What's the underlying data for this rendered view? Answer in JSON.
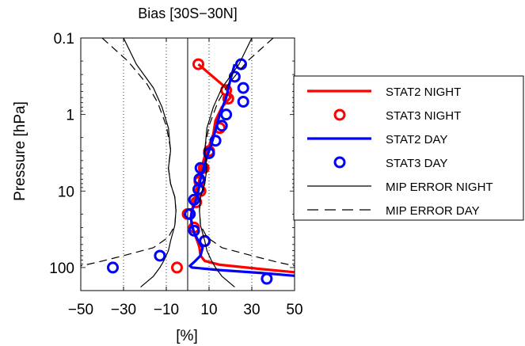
{
  "chart_data": {
    "type": "line",
    "title": "Bias [30S−30N]",
    "xlabel": "[%]",
    "ylabel": "Pressure [hPa]",
    "xlim": [
      -50,
      50
    ],
    "ylim": [
      0.1,
      200
    ],
    "y_scale": "log",
    "y_reversed": true,
    "grid": "vertical dotted lines at x = -30, -10, 10, 30",
    "zero_line": true,
    "legend_position": "right",
    "x_ticks": [
      -50,
      -30,
      -10,
      10,
      30,
      50
    ],
    "x_tick_labels": [
      "−50",
      "−30",
      "−10",
      "10",
      "30",
      "50"
    ],
    "y_ticks": [
      0.1,
      1,
      10,
      100
    ],
    "y_tick_labels": [
      "0.1",
      "1",
      "10",
      "100"
    ],
    "colors": {
      "night": "#ff0000",
      "day": "#0000ff",
      "error": "#000000"
    },
    "series": [
      {
        "name": "STAT2 NIGHT",
        "style": "line",
        "color": "#ff0000",
        "points": [
          [
            5,
            0.22
          ],
          [
            18,
            0.45
          ],
          [
            20,
            0.6
          ],
          [
            16,
            0.8
          ],
          [
            13,
            1.2
          ],
          [
            12,
            1.8
          ],
          [
            10,
            2.6
          ],
          [
            8,
            3.5
          ],
          [
            6.5,
            5
          ],
          [
            5.5,
            7
          ],
          [
            4.5,
            10
          ],
          [
            3,
            14
          ],
          [
            2,
            18
          ],
          [
            1.5,
            22
          ],
          [
            2,
            28
          ],
          [
            3,
            35
          ],
          [
            4.5,
            45
          ],
          [
            5.5,
            55
          ],
          [
            6,
            70
          ],
          [
            8,
            82
          ],
          [
            15,
            92
          ],
          [
            35,
            105
          ],
          [
            50,
            115
          ]
        ]
      },
      {
        "name": "STAT3 NIGHT",
        "style": "markers",
        "color": "#ff0000",
        "points": [
          [
            5,
            0.22
          ],
          [
            18,
            0.48
          ],
          [
            19,
            0.62
          ],
          [
            15,
            1.5
          ],
          [
            10,
            3
          ],
          [
            7.5,
            5
          ],
          [
            5.5,
            7.5
          ],
          [
            6,
            10
          ],
          [
            4,
            14
          ],
          [
            0,
            20
          ],
          [
            3,
            30
          ],
          [
            8,
            45
          ],
          [
            -5,
            100
          ]
        ]
      },
      {
        "name": "STAT2 DAY",
        "style": "line",
        "color": "#0000ff",
        "points": [
          [
            22,
            0.22
          ],
          [
            20,
            0.35
          ],
          [
            18,
            0.6
          ],
          [
            15,
            1.0
          ],
          [
            13,
            1.6
          ],
          [
            11,
            2.5
          ],
          [
            9,
            3.6
          ],
          [
            7.5,
            5
          ],
          [
            6,
            7
          ],
          [
            5,
            10
          ],
          [
            4,
            13
          ],
          [
            2,
            18
          ],
          [
            1.5,
            22
          ],
          [
            2,
            28
          ],
          [
            3,
            35
          ],
          [
            5,
            45
          ],
          [
            7,
            55
          ],
          [
            6,
            70
          ],
          [
            3,
            85
          ],
          [
            1,
            95
          ],
          [
            2,
            100
          ],
          [
            15,
            108
          ],
          [
            35,
            118
          ],
          [
            50,
            128
          ]
        ]
      },
      {
        "name": "STAT3 DAY",
        "style": "markers",
        "color": "#0000ff",
        "points": [
          [
            25,
            0.22
          ],
          [
            22,
            0.32
          ],
          [
            26,
            0.45
          ],
          [
            26,
            0.68
          ],
          [
            18,
            1.0
          ],
          [
            16,
            1.4
          ],
          [
            13,
            2.2
          ],
          [
            10,
            3.2
          ],
          [
            6,
            5
          ],
          [
            5.5,
            7
          ],
          [
            5,
            9.5
          ],
          [
            3,
            13
          ],
          [
            1,
            20
          ],
          [
            3,
            33
          ],
          [
            8,
            45
          ],
          [
            -13,
            70
          ],
          [
            -35,
            100
          ],
          [
            37,
            140
          ]
        ]
      },
      {
        "name": "MIP ERROR NIGHT",
        "style": "line",
        "dash": "solid",
        "color": "#000000",
        "mirrored": true,
        "points": [
          [
            30,
            0.1
          ],
          [
            24,
            0.22
          ],
          [
            16,
            0.45
          ],
          [
            12,
            0.8
          ],
          [
            9,
            1.5
          ],
          [
            8,
            3
          ],
          [
            9,
            5
          ],
          [
            8,
            8
          ],
          [
            6,
            12
          ],
          [
            5.5,
            18
          ],
          [
            6,
            28
          ],
          [
            8,
            45
          ],
          [
            9,
            60
          ],
          [
            11,
            80
          ],
          [
            13,
            100
          ],
          [
            16,
            130
          ],
          [
            22,
            180
          ]
        ]
      },
      {
        "name": "MIP ERROR DAY",
        "style": "line",
        "dash": "dashed",
        "color": "#000000",
        "mirrored": true,
        "points": [
          [
            40,
            0.1
          ],
          [
            28,
            0.2
          ],
          [
            19,
            0.4
          ],
          [
            14,
            0.7
          ],
          [
            10,
            1.4
          ],
          [
            8,
            2.8
          ],
          [
            9,
            5
          ],
          [
            8,
            8
          ],
          [
            6,
            12
          ],
          [
            5.5,
            18
          ],
          [
            6,
            28
          ],
          [
            9,
            40
          ],
          [
            16,
            55
          ],
          [
            30,
            70
          ],
          [
            42,
            85
          ],
          [
            50,
            95
          ]
        ]
      }
    ]
  }
}
